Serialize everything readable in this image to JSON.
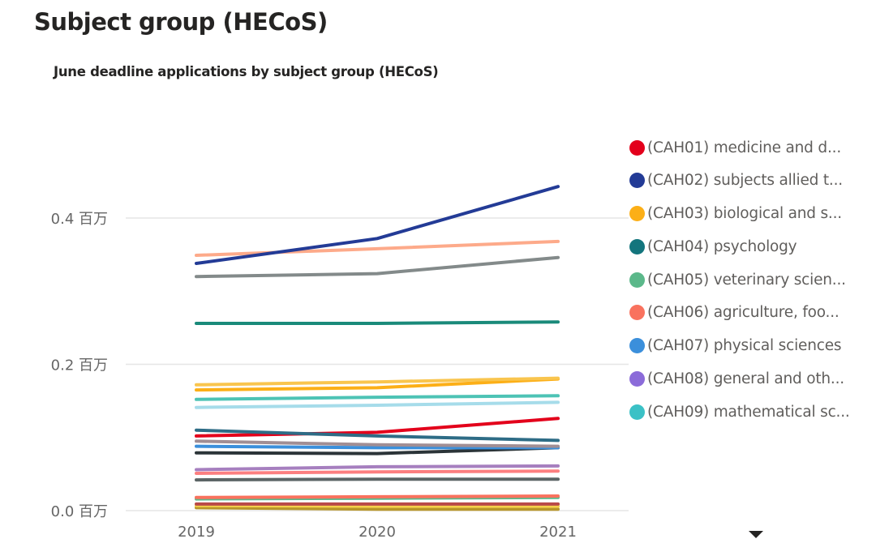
{
  "page": {
    "title": "Subject group (HECoS)"
  },
  "chart_data": {
    "type": "line",
    "title": "June deadline applications by subject group (HECoS)",
    "xlabel": "",
    "ylabel": "",
    "x": [
      "2019",
      "2020",
      "2021"
    ],
    "ylim": [
      0,
      0.45
    ],
    "yticks": [
      0.0,
      0.2,
      0.4
    ],
    "ytick_labels": [
      "0.0 百万",
      "0.2 百万",
      "0.4 百万"
    ],
    "y_unit": "百万",
    "grid": true,
    "legend_position": "right",
    "legend": [
      {
        "name": "(CAH01) medicine and d...",
        "color": "#E3001B"
      },
      {
        "name": "(CAH02) subjects allied t...",
        "color": "#233B96"
      },
      {
        "name": "(CAH03) biological and s...",
        "color": "#FCAF17"
      },
      {
        "name": "(CAH04) psychology",
        "color": "#13757D"
      },
      {
        "name": "(CAH05) veterinary scien...",
        "color": "#5BB88A"
      },
      {
        "name": "(CAH06) agriculture, foo...",
        "color": "#F9725E"
      },
      {
        "name": "(CAH07) physical sciences",
        "color": "#3B8FDB"
      },
      {
        "name": "(CAH08) general and oth...",
        "color": "#8B6BD9"
      },
      {
        "name": "(CAH09) mathematical sc...",
        "color": "#3BC1C6"
      }
    ],
    "series": [
      {
        "name": "(CAH02) subjects allied t...",
        "color": "#233B96",
        "values": [
          0.338,
          0.372,
          0.443
        ]
      },
      {
        "name": "series-salmon",
        "color": "#FDAA8A",
        "values": [
          0.349,
          0.358,
          0.368
        ]
      },
      {
        "name": "series-grey",
        "color": "#838A8A",
        "values": [
          0.32,
          0.324,
          0.346
        ]
      },
      {
        "name": "(CAH04) psychology",
        "color": "#1A8A7A",
        "values": [
          0.256,
          0.256,
          0.258
        ]
      },
      {
        "name": "series-light-yellow",
        "color": "#F9C54E",
        "values": [
          0.172,
          0.176,
          0.181
        ]
      },
      {
        "name": "(CAH03) biological and s...",
        "color": "#FCAF17",
        "values": [
          0.165,
          0.168,
          0.18
        ]
      },
      {
        "name": "(CAH09) mathematical sc...",
        "color": "#4DC3B5",
        "values": [
          0.152,
          0.155,
          0.157
        ]
      },
      {
        "name": "series-light-blue",
        "color": "#A6DCEA",
        "values": [
          0.141,
          0.144,
          0.148
        ]
      },
      {
        "name": "series-dark-teal",
        "color": "#2E6C86",
        "values": [
          0.11,
          0.102,
          0.096
        ]
      },
      {
        "name": "(CAH01) medicine and d...",
        "color": "#E3001B",
        "values": [
          0.102,
          0.107,
          0.126
        ]
      },
      {
        "name": "series-mauve",
        "color": "#A18E94",
        "values": [
          0.095,
          0.09,
          0.088
        ]
      },
      {
        "name": "(CAH07) physical sciences",
        "color": "#3B8FDB",
        "values": [
          0.088,
          0.086,
          0.086
        ]
      },
      {
        "name": "series-charcoal",
        "color": "#2B3438",
        "values": [
          0.079,
          0.078,
          0.086
        ]
      },
      {
        "name": "(CAH08) general and oth...",
        "color": "#A67FBF",
        "values": [
          0.056,
          0.06,
          0.061
        ]
      },
      {
        "name": "series-pink",
        "color": "#FC7F80",
        "values": [
          0.051,
          0.053,
          0.054
        ]
      },
      {
        "name": "series-slate",
        "color": "#5C6566",
        "values": [
          0.042,
          0.043,
          0.043
        ]
      },
      {
        "name": "(CAH06) agriculture, foo...",
        "color": "#F9725E",
        "values": [
          0.018,
          0.019,
          0.02
        ]
      },
      {
        "name": "(CAH05) veterinary scien...",
        "color": "#5BB88A",
        "values": [
          0.016,
          0.017,
          0.018
        ]
      },
      {
        "name": "series-dark-red",
        "color": "#B94A48",
        "values": [
          0.009,
          0.009,
          0.009
        ]
      },
      {
        "name": "series-yellow",
        "color": "#F5D04A",
        "values": [
          0.007,
          0.006,
          0.006
        ]
      },
      {
        "name": "series-olive",
        "color": "#B8962A",
        "values": [
          0.004,
          0.002,
          0.002
        ]
      }
    ]
  },
  "legend_more": {
    "icon": "caret-down-icon"
  }
}
